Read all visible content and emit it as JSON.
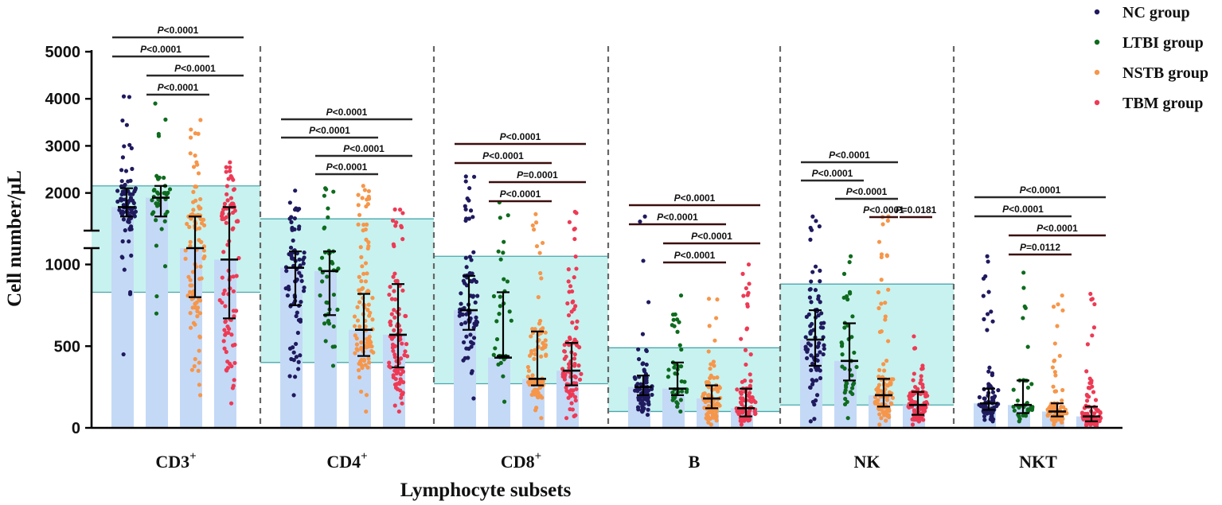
{
  "chart_data": {
    "type": "scatter",
    "title": "",
    "xlabel": "Lymphocyte subsets",
    "ylabel": "Cell number/μL",
    "categories": [
      {
        "name": "CD3",
        "sup": "+"
      },
      {
        "name": "CD4",
        "sup": "+"
      },
      {
        "name": "CD8",
        "sup": "+"
      },
      {
        "name": "B",
        "sup": ""
      },
      {
        "name": "NK",
        "sup": ""
      },
      {
        "name": "NKT",
        "sup": ""
      }
    ],
    "y_axis": {
      "lower_segment": {
        "range": [
          0,
          1100
        ],
        "ticks": [
          0,
          500,
          1000
        ]
      },
      "upper_segment": {
        "range": [
          1200,
          5000
        ],
        "ticks": [
          2000,
          3000,
          4000,
          5000
        ]
      },
      "break": [
        1100,
        1200
      ]
    },
    "y_tick_labels": [
      "0",
      "500",
      "1000",
      "2000",
      "3000",
      "4000",
      "5000"
    ],
    "legend": {
      "position": "top-right",
      "entries": [
        "NC group",
        "LTBI group",
        "NSTB group",
        "TBM group"
      ]
    },
    "series": [
      {
        "name": "NC group",
        "color": "#1f1a5e",
        "medians": [
          1700,
          980,
          720,
          250,
          540,
          150
        ],
        "q1": [
          1500,
          750,
          600,
          200,
          380,
          110
        ],
        "q3": [
          2100,
          1080,
          930,
          320,
          720,
          240
        ],
        "mins": [
          450,
          200,
          180,
          80,
          40,
          40
        ],
        "maxs": [
          4050,
          2050,
          2350,
          1500,
          1500,
          1050
        ],
        "n": [
          90,
          80,
          80,
          80,
          80,
          80
        ]
      },
      {
        "name": "LTBI group",
        "color": "#0e6b1e",
        "medians": [
          1900,
          960,
          430,
          240,
          410,
          140
        ],
        "q1": [
          1500,
          690,
          440,
          200,
          290,
          90
        ],
        "q3": [
          2150,
          1080,
          830,
          400,
          640,
          290
        ],
        "mins": [
          700,
          380,
          160,
          100,
          60,
          40
        ],
        "maxs": [
          3900,
          2100,
          1800,
          810,
          1050,
          950
        ],
        "n": [
          40,
          40,
          40,
          40,
          40,
          40
        ]
      },
      {
        "name": "NSTB group",
        "color": "#f6964a",
        "medians": [
          1100,
          600,
          300,
          180,
          200,
          100
        ],
        "q1": [
          800,
          440,
          260,
          120,
          130,
          70
        ],
        "q3": [
          1500,
          820,
          590,
          260,
          300,
          150
        ],
        "mins": [
          200,
          100,
          60,
          20,
          20,
          20
        ],
        "maxs": [
          3550,
          2150,
          1550,
          790,
          1500,
          810
        ],
        "n": [
          100,
          100,
          100,
          100,
          100,
          100
        ]
      },
      {
        "name": "TBM group",
        "color": "#ee3a55",
        "medians": [
          1030,
          570,
          350,
          120,
          140,
          70
        ],
        "q1": [
          670,
          370,
          260,
          70,
          80,
          40
        ],
        "q3": [
          1700,
          880,
          520,
          240,
          220,
          130
        ],
        "mins": [
          150,
          100,
          60,
          20,
          20,
          10
        ],
        "maxs": [
          2650,
          1650,
          1600,
          1000,
          560,
          820
        ],
        "n": [
          95,
          95,
          95,
          95,
          95,
          95
        ]
      }
    ],
    "reference_ranges": [
      [
        830,
        2150
      ],
      [
        400,
        1450
      ],
      [
        270,
        1050
      ],
      [
        100,
        490
      ],
      [
        140,
        880
      ],
      null
    ],
    "pvalues": [
      {
        "category": 0,
        "g1": 0,
        "g2": 3,
        "text": "P<0.0001"
      },
      {
        "category": 0,
        "g1": 0,
        "g2": 2,
        "text": "P<0.0001"
      },
      {
        "category": 0,
        "g1": 1,
        "g2": 3,
        "text": "P<0.0001"
      },
      {
        "category": 0,
        "g1": 1,
        "g2": 2,
        "text": "P<0.0001"
      },
      {
        "category": 1,
        "g1": 0,
        "g2": 3,
        "text": "P<0.0001"
      },
      {
        "category": 1,
        "g1": 0,
        "g2": 2,
        "text": "P<0.0001"
      },
      {
        "category": 1,
        "g1": 1,
        "g2": 3,
        "text": "P<0.0001"
      },
      {
        "category": 1,
        "g1": 1,
        "g2": 2,
        "text": "P<0.0001"
      },
      {
        "category": 2,
        "g1": 0,
        "g2": 3,
        "text": "P<0.0001"
      },
      {
        "category": 2,
        "g1": 0,
        "g2": 2,
        "text": "P<0.0001"
      },
      {
        "category": 2,
        "g1": 1,
        "g2": 3,
        "text": "P=0.0001"
      },
      {
        "category": 2,
        "g1": 1,
        "g2": 2,
        "text": "P<0.0001"
      },
      {
        "category": 3,
        "g1": 0,
        "g2": 3,
        "text": "P<0.0001"
      },
      {
        "category": 3,
        "g1": 0,
        "g2": 2,
        "text": "P<0.0001"
      },
      {
        "category": 3,
        "g1": 1,
        "g2": 3,
        "text": "P<0.0001"
      },
      {
        "category": 3,
        "g1": 1,
        "g2": 2,
        "text": "P<0.0001"
      },
      {
        "category": 4,
        "g1": 0,
        "g2": 2,
        "text": "P<0.0001"
      },
      {
        "category": 4,
        "g1": 0,
        "g2": 1,
        "text": "P<0.0001"
      },
      {
        "category": 4,
        "g1": 1,
        "g2": 2,
        "text": "P<0.0001"
      },
      {
        "category": 4,
        "g1": 2,
        "g2": 2,
        "text": "P<0.0001"
      },
      {
        "category": 4,
        "g1": 2,
        "g2": 3,
        "text": "P=0.0181"
      },
      {
        "category": 5,
        "g1": 0,
        "g2": 3,
        "text": "P<0.0001"
      },
      {
        "category": 5,
        "g1": 0,
        "g2": 2,
        "text": "P<0.0001"
      },
      {
        "category": 5,
        "g1": 1,
        "g2": 3,
        "text": "P<0.0001"
      },
      {
        "category": 5,
        "g1": 1,
        "g2": 2,
        "text": "P=0.0112"
      }
    ]
  }
}
